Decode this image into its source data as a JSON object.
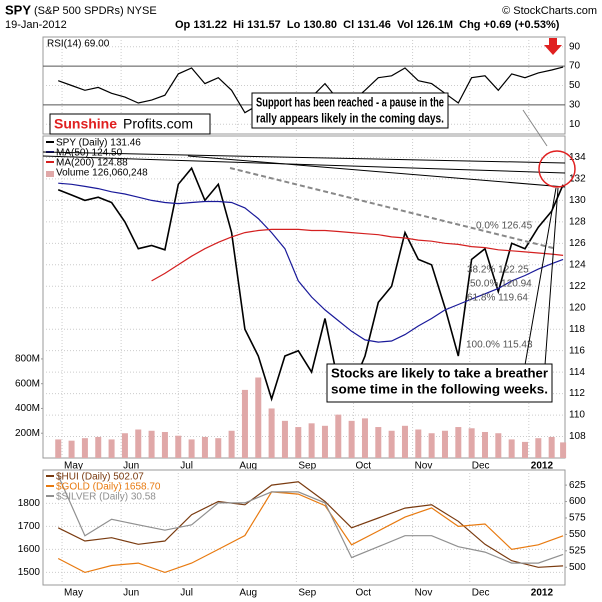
{
  "header": {
    "symbol": "SPY",
    "name": "(S&P 500 SPDRs) NYSE",
    "date": "19-Jan-2012",
    "quote": "Op 131.22  Hi 131.57  Lo 130.80  Cl 131.46  Vol 126.1M  Chg +0.69 (+0.53%)",
    "source": "© StockCharts.com"
  },
  "logo": {
    "part1": "Sunshine",
    "part2": "Profits.com"
  },
  "chart_data": [
    {
      "type": "line",
      "title": "RSI(14) 69.00",
      "xlim": [
        "2011-04-21",
        "2012-01-20"
      ],
      "x": [
        "2011-04-29",
        "2011-05-06",
        "2011-05-13",
        "2011-05-20",
        "2011-05-27",
        "2011-06-03",
        "2011-06-10",
        "2011-06-17",
        "2011-06-24",
        "2011-07-01",
        "2011-07-08",
        "2011-07-15",
        "2011-07-22",
        "2011-07-29",
        "2011-08-05",
        "2011-08-12",
        "2011-08-19",
        "2011-08-26",
        "2011-09-02",
        "2011-09-09",
        "2011-09-16",
        "2011-09-23",
        "2011-09-30",
        "2011-10-07",
        "2011-10-14",
        "2011-10-21",
        "2011-10-28",
        "2011-11-04",
        "2011-11-11",
        "2011-11-18",
        "2011-11-25",
        "2011-12-02",
        "2011-12-09",
        "2011-12-16",
        "2011-12-23",
        "2011-12-30",
        "2012-01-06",
        "2012-01-13",
        "2012-01-19"
      ],
      "series": [
        {
          "color": "#000000",
          "values": [
            55,
            50,
            45,
            48,
            42,
            38,
            32,
            35,
            40,
            62,
            68,
            52,
            58,
            45,
            22,
            30,
            25,
            40,
            42,
            38,
            52,
            35,
            33,
            45,
            58,
            60,
            68,
            55,
            52,
            42,
            32,
            58,
            60,
            45,
            62,
            58,
            63,
            66,
            69
          ]
        }
      ],
      "ylim": [
        0,
        100
      ],
      "yticks": [
        10,
        30,
        50,
        70,
        90
      ],
      "grid": true
    },
    {
      "type": "line",
      "xlim": [
        "2011-04-21",
        "2012-01-20"
      ],
      "xticks": [
        {
          "value": "2011-05-01",
          "label": "May"
        },
        {
          "value": "2011-06-01",
          "label": "Jun"
        },
        {
          "value": "2011-07-01",
          "label": "Jul"
        },
        {
          "value": "2011-08-01",
          "label": "Aug"
        },
        {
          "value": "2011-09-01",
          "label": "Sep"
        },
        {
          "value": "2011-10-01",
          "label": "Oct"
        },
        {
          "value": "2011-11-01",
          "label": "Nov"
        },
        {
          "value": "2011-12-01",
          "label": "Dec"
        },
        {
          "value": "2012-01-01",
          "label": "2012"
        }
      ],
      "x": [
        "2011-04-29",
        "2011-05-06",
        "2011-05-13",
        "2011-05-20",
        "2011-05-27",
        "2011-06-03",
        "2011-06-10",
        "2011-06-17",
        "2011-06-24",
        "2011-07-01",
        "2011-07-08",
        "2011-07-15",
        "2011-07-22",
        "2011-07-29",
        "2011-08-05",
        "2011-08-12",
        "2011-08-19",
        "2011-08-26",
        "2011-09-02",
        "2011-09-09",
        "2011-09-16",
        "2011-09-23",
        "2011-09-30",
        "2011-10-07",
        "2011-10-14",
        "2011-10-21",
        "2011-10-28",
        "2011-11-04",
        "2011-11-11",
        "2011-11-18",
        "2011-11-25",
        "2011-12-02",
        "2011-12-09",
        "2011-12-16",
        "2011-12-23",
        "2011-12-30",
        "2012-01-06",
        "2012-01-13",
        "2012-01-19"
      ],
      "series": [
        {
          "name": "SPY (Daily) 131.46",
          "color": "#000000",
          "values": [
            131.0,
            130.5,
            130.0,
            130.3,
            129.8,
            128.0,
            125.5,
            125.8,
            125.4,
            131.5,
            133.0,
            130.0,
            131.5,
            127.0,
            118.0,
            115.5,
            111.5,
            115.5,
            116.0,
            114.0,
            119.0,
            113.0,
            112.5,
            115.5,
            120.5,
            122.0,
            127.0,
            124.5,
            124.0,
            120.0,
            115.5,
            124.5,
            125.5,
            121.5,
            126.0,
            125.5,
            127.5,
            129.0,
            131.46
          ]
        },
        {
          "name": "MA(50) 124.50",
          "color": "#1a1a9a",
          "values": [
            131.6,
            131.5,
            131.3,
            131.1,
            130.8,
            130.6,
            130.3,
            130.0,
            129.8,
            129.7,
            129.8,
            129.9,
            129.9,
            129.8,
            129.3,
            128.3,
            127.0,
            125.5,
            122.5,
            121.0,
            119.8,
            118.8,
            117.8,
            117.0,
            116.8,
            116.9,
            117.5,
            118.3,
            119.0,
            119.8,
            120.3,
            120.8,
            121.3,
            121.8,
            122.5,
            123.0,
            123.6,
            124.1,
            124.5
          ]
        },
        {
          "name": "MA(200) 124.88",
          "color": "#d42020",
          "values": [
            null,
            null,
            null,
            null,
            null,
            null,
            null,
            122.5,
            123.2,
            124.0,
            124.8,
            125.5,
            126.1,
            126.6,
            127.0,
            127.2,
            127.3,
            127.3,
            127.3,
            127.2,
            127.2,
            127.1,
            127.0,
            126.9,
            126.8,
            126.6,
            126.5,
            126.3,
            126.2,
            126.0,
            125.9,
            125.7,
            125.6,
            125.4,
            125.3,
            125.2,
            125.1,
            125.0,
            124.88
          ]
        },
        {
          "name": "Volume 126,060,248",
          "type": "bar",
          "axis": "y2",
          "color": "#e0a8a8",
          "values": [
            150,
            140,
            160,
            170,
            150,
            200,
            230,
            220,
            210,
            180,
            150,
            170,
            160,
            220,
            550,
            650,
            400,
            300,
            250,
            280,
            260,
            350,
            300,
            320,
            250,
            220,
            260,
            230,
            200,
            220,
            250,
            240,
            210,
            200,
            150,
            130,
            160,
            170,
            126.06
          ]
        }
      ],
      "ylim": [
        106,
        136
      ],
      "yticks": [
        108,
        110,
        112,
        114,
        116,
        118,
        120,
        122,
        124,
        126,
        128,
        130,
        132,
        134
      ],
      "y2lim": [
        0,
        2600
      ],
      "y2ticks": [
        {
          "value": 200,
          "label": "200M"
        },
        {
          "value": 400,
          "label": "400M"
        },
        {
          "value": 600,
          "label": "600M"
        },
        {
          "value": 800,
          "label": "800M"
        }
      ],
      "grid": true,
      "fib_labels": [
        "0.0% 126.45",
        "38.2% 122.25",
        "50.0% 120.94",
        "61.8% 119.64",
        "100.0% 115.43"
      ],
      "annotations": [
        {
          "lines": [
            "Support has been reached - a pause in the",
            "rally appears likely in the coming days."
          ]
        },
        {
          "lines": [
            "Stocks are likely to take a breather",
            "some time in the following weeks."
          ]
        }
      ]
    },
    {
      "type": "line",
      "xlim": [
        "2011-04-21",
        "2012-01-20"
      ],
      "xticks": [
        {
          "value": "2011-05-01",
          "label": "May"
        },
        {
          "value": "2011-06-01",
          "label": "Jun"
        },
        {
          "value": "2011-07-01",
          "label": "Jul"
        },
        {
          "value": "2011-08-01",
          "label": "Aug"
        },
        {
          "value": "2011-09-01",
          "label": "Sep"
        },
        {
          "value": "2011-10-01",
          "label": "Oct"
        },
        {
          "value": "2011-11-01",
          "label": "Nov"
        },
        {
          "value": "2011-12-01",
          "label": "Dec"
        },
        {
          "value": "2012-01-01",
          "label": "2012"
        }
      ],
      "x": [
        "2011-04-29",
        "2011-05-13",
        "2011-05-27",
        "2011-06-10",
        "2011-06-24",
        "2011-07-08",
        "2011-07-22",
        "2011-08-05",
        "2011-08-19",
        "2011-09-02",
        "2011-09-16",
        "2011-09-30",
        "2011-10-14",
        "2011-10-28",
        "2011-11-11",
        "2011-11-25",
        "2011-12-09",
        "2011-12-23",
        "2012-01-06",
        "2012-01-19"
      ],
      "series": [
        {
          "name": "$HUI (Daily) 502.07",
          "color": "#7a3b10",
          "axis": "y2",
          "values": [
            560,
            540,
            545,
            535,
            540,
            580,
            600,
            595,
            625,
            630,
            600,
            560,
            575,
            590,
            595,
            570,
            535,
            510,
            500,
            502.07
          ]
        },
        {
          "name": "$GOLD (Daily) 1658.70",
          "color": "#e87a10",
          "values": [
            1560,
            1500,
            1530,
            1540,
            1500,
            1540,
            1600,
            1660,
            1850,
            1840,
            1790,
            1620,
            1680,
            1740,
            1780,
            1700,
            1710,
            1600,
            1620,
            1658.7
          ]
        },
        {
          "name": "$SILVER (Daily) 30.58",
          "color": "#909090",
          "axis": "y3",
          "values": [
            45,
            34,
            37,
            36,
            35,
            36,
            40,
            40,
            42,
            42,
            40,
            30,
            32,
            34,
            34,
            32,
            31,
            29,
            29,
            30.58
          ]
        }
      ],
      "ylim": [
        1445,
        1945
      ],
      "yticks": [
        1500,
        1600,
        1700,
        1800
      ],
      "y2lim": [
        473,
        648
      ],
      "y2ticks": [
        500,
        525,
        550,
        575,
        600,
        625
      ],
      "y3lim": [
        25,
        46
      ],
      "grid": true
    }
  ]
}
